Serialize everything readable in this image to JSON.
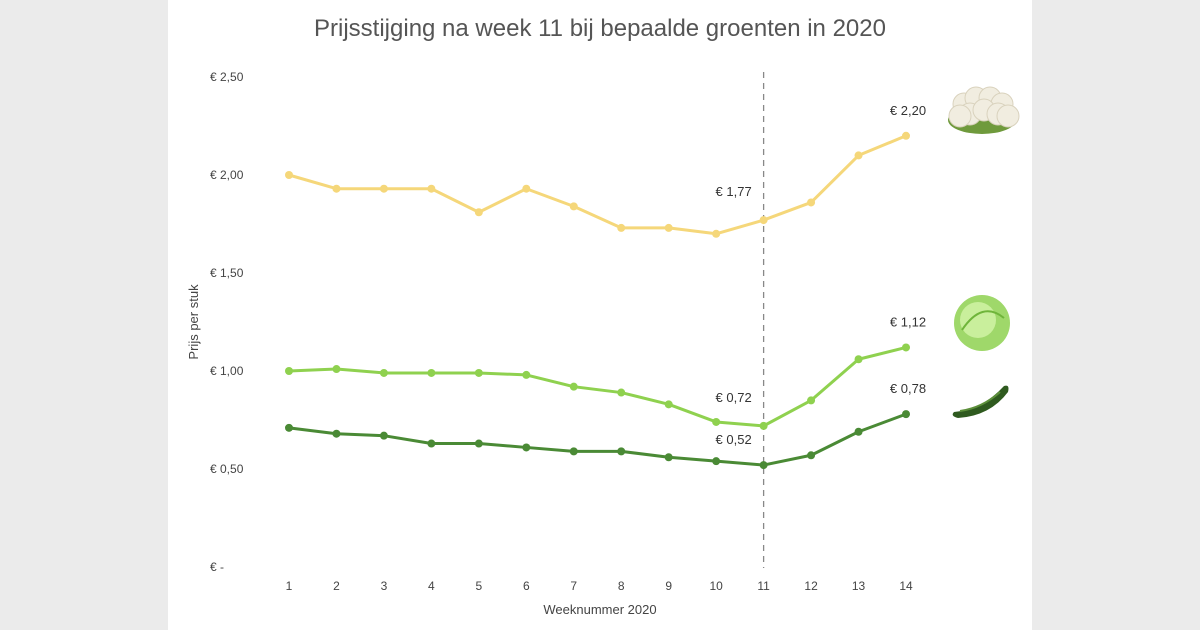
{
  "chart_data": {
    "type": "line",
    "title": "Prijsstijging na week 11 bij bepaalde groenten in 2020",
    "xlabel": "Weeknummer 2020",
    "ylabel": "Prijs per stuk",
    "categories": [
      "1",
      "2",
      "3",
      "4",
      "5",
      "6",
      "7",
      "8",
      "9",
      "10",
      "11",
      "12",
      "13",
      "14"
    ],
    "ylim": [
      0,
      2.5
    ],
    "yticks": [
      {
        "value": 0,
        "label": "€ -"
      },
      {
        "value": 0.5,
        "label": "€ 0,50"
      },
      {
        "value": 1.0,
        "label": "€ 1,00"
      },
      {
        "value": 1.5,
        "label": "€ 1,50"
      },
      {
        "value": 2.0,
        "label": "€ 2,00"
      },
      {
        "value": 2.5,
        "label": "€ 2,50"
      }
    ],
    "grid": false,
    "reference_line": {
      "x": "11",
      "style": "dashed",
      "color": "#888888"
    },
    "series": [
      {
        "icon": "cauliflower-icon",
        "color": "#f5d77a",
        "values": [
          2.0,
          1.93,
          1.93,
          1.93,
          1.81,
          1.93,
          1.84,
          1.73,
          1.73,
          1.7,
          1.77,
          1.86,
          2.1,
          2.2
        ],
        "labels": [
          {
            "index": 10,
            "text": "€ 1,77"
          },
          {
            "index": 13,
            "text": "€ 2,20"
          }
        ]
      },
      {
        "icon": "lettuce-icon",
        "color": "#8fd14f",
        "values": [
          1.0,
          1.01,
          0.99,
          0.99,
          0.99,
          0.98,
          0.92,
          0.89,
          0.83,
          0.74,
          0.72,
          0.85,
          1.06,
          1.12
        ],
        "labels": [
          {
            "index": 10,
            "text": "€ 0,72"
          },
          {
            "index": 13,
            "text": "€ 1,12"
          }
        ]
      },
      {
        "icon": "zucchini-icon",
        "color": "#4a8a35",
        "values": [
          0.71,
          0.68,
          0.67,
          0.63,
          0.63,
          0.61,
          0.59,
          0.59,
          0.56,
          0.54,
          0.52,
          0.57,
          0.69,
          0.78
        ],
        "labels": [
          {
            "index": 10,
            "text": "€ 0,52"
          },
          {
            "index": 13,
            "text": "€ 0,78"
          }
        ]
      }
    ]
  }
}
